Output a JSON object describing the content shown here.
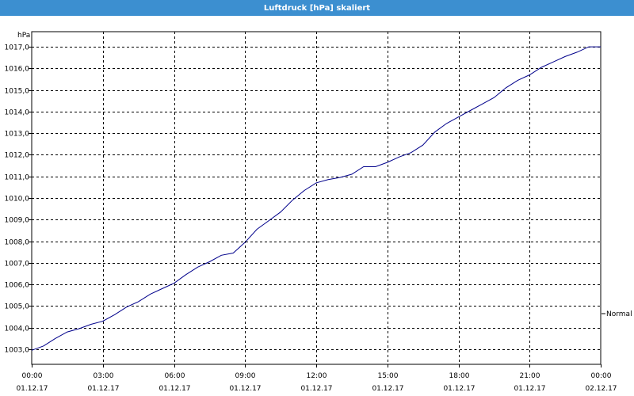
{
  "window": {
    "title": "Luftdruck [hPa] skaliert"
  },
  "chart_data": {
    "type": "line",
    "title": "Luftdruck [hPa] skaliert",
    "ylabel": "hPa",
    "xlabel": "",
    "ylim": [
      1002.3,
      1017.7
    ],
    "xlim": [
      0,
      24
    ],
    "y_ticks": [
      "1003,0",
      "1004,0",
      "1005,0",
      "1006,0",
      "1007,0",
      "1008,0",
      "1009,0",
      "1010,0",
      "1011,0",
      "1012,0",
      "1013,0",
      "1014,0",
      "1015,0",
      "1016,0",
      "1017,0"
    ],
    "x_ticks": [
      {
        "time": "00:00",
        "date": "01.12.17"
      },
      {
        "time": "03:00",
        "date": "01.12.17"
      },
      {
        "time": "06:00",
        "date": "01.12.17"
      },
      {
        "time": "09:00",
        "date": "01.12.17"
      },
      {
        "time": "12:00",
        "date": "01.12.17"
      },
      {
        "time": "15:00",
        "date": "01.12.17"
      },
      {
        "time": "18:00",
        "date": "01.12.17"
      },
      {
        "time": "21:00",
        "date": "01.12.17"
      },
      {
        "time": "00:00",
        "date": "02.12.17"
      }
    ],
    "grid": true,
    "series": [
      {
        "name": "Normal",
        "color": "#00008b",
        "points": [
          [
            "00:00",
            1002.95
          ],
          [
            "00:30",
            1003.15
          ],
          [
            "01:00",
            1003.5
          ],
          [
            "01:30",
            1003.8
          ],
          [
            "02:00",
            1003.95
          ],
          [
            "02:30",
            1004.15
          ],
          [
            "03:00",
            1004.3
          ],
          [
            "03:30",
            1004.6
          ],
          [
            "04:00",
            1004.95
          ],
          [
            "04:30",
            1005.2
          ],
          [
            "05:00",
            1005.55
          ],
          [
            "05:30",
            1005.8
          ],
          [
            "06:00",
            1006.05
          ],
          [
            "06:30",
            1006.45
          ],
          [
            "07:00",
            1006.8
          ],
          [
            "07:30",
            1007.05
          ],
          [
            "08:00",
            1007.35
          ],
          [
            "08:30",
            1007.45
          ],
          [
            "09:00",
            1007.95
          ],
          [
            "09:30",
            1008.55
          ],
          [
            "10:00",
            1008.95
          ],
          [
            "10:30",
            1009.35
          ],
          [
            "11:00",
            1009.9
          ],
          [
            "11:30",
            1010.35
          ],
          [
            "12:00",
            1010.7
          ],
          [
            "12:30",
            1010.85
          ],
          [
            "13:00",
            1010.95
          ],
          [
            "13:30",
            1011.1
          ],
          [
            "14:00",
            1011.45
          ],
          [
            "14:30",
            1011.45
          ],
          [
            "15:00",
            1011.65
          ],
          [
            "15:30",
            1011.9
          ],
          [
            "16:00",
            1012.1
          ],
          [
            "16:30",
            1012.45
          ],
          [
            "17:00",
            1013.05
          ],
          [
            "17:30",
            1013.45
          ],
          [
            "18:00",
            1013.75
          ],
          [
            "18:30",
            1014.05
          ],
          [
            "19:00",
            1014.35
          ],
          [
            "19:30",
            1014.65
          ],
          [
            "20:00",
            1015.1
          ],
          [
            "20:30",
            1015.45
          ],
          [
            "21:00",
            1015.7
          ],
          [
            "21:30",
            1016.05
          ],
          [
            "22:00",
            1016.3
          ],
          [
            "22:30",
            1016.55
          ],
          [
            "23:00",
            1016.75
          ],
          [
            "23:30",
            1017.0
          ],
          [
            "00:00 (02.12.17)",
            1017.0
          ]
        ]
      }
    ],
    "legend": {
      "entries": [
        "Normal"
      ],
      "placement": "right"
    }
  }
}
